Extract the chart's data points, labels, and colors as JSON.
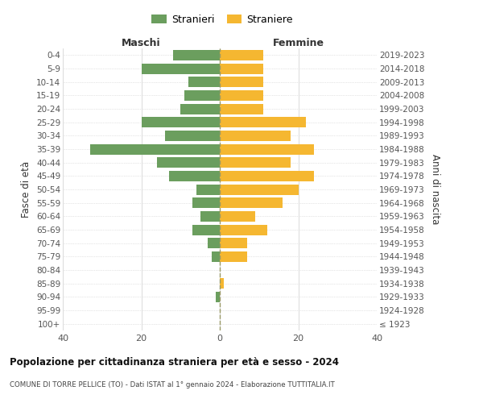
{
  "age_groups": [
    "100+",
    "95-99",
    "90-94",
    "85-89",
    "80-84",
    "75-79",
    "70-74",
    "65-69",
    "60-64",
    "55-59",
    "50-54",
    "45-49",
    "40-44",
    "35-39",
    "30-34",
    "25-29",
    "20-24",
    "15-19",
    "10-14",
    "5-9",
    "0-4"
  ],
  "birth_years": [
    "≤ 1923",
    "1924-1928",
    "1929-1933",
    "1934-1938",
    "1939-1943",
    "1944-1948",
    "1949-1953",
    "1954-1958",
    "1959-1963",
    "1964-1968",
    "1969-1973",
    "1974-1978",
    "1979-1983",
    "1984-1988",
    "1989-1993",
    "1994-1998",
    "1999-2003",
    "2004-2008",
    "2009-2013",
    "2014-2018",
    "2019-2023"
  ],
  "maschi": [
    0,
    0,
    1,
    0,
    0,
    2,
    3,
    7,
    5,
    7,
    6,
    13,
    16,
    33,
    14,
    20,
    10,
    9,
    8,
    20,
    12
  ],
  "femmine": [
    0,
    0,
    0,
    1,
    0,
    7,
    7,
    12,
    9,
    16,
    20,
    24,
    18,
    24,
    18,
    22,
    11,
    11,
    11,
    11,
    11
  ],
  "male_color": "#6b9e5e",
  "female_color": "#f5b731",
  "center_line_color": "#999966",
  "grid_color": "#cccccc",
  "bg_color": "#ffffff",
  "xlim": 40,
  "title_main": "Popolazione per cittadinanza straniera per età e sesso - 2024",
  "title_sub": "COMUNE DI TORRE PELLICE (TO) - Dati ISTAT al 1° gennaio 2024 - Elaborazione TUTTITALIA.IT",
  "ylabel_left": "Fasce di età",
  "ylabel_right": "Anni di nascita",
  "legend_male": "Stranieri",
  "legend_female": "Straniere",
  "maschi_label": "Maschi",
  "femmine_label": "Femmine"
}
